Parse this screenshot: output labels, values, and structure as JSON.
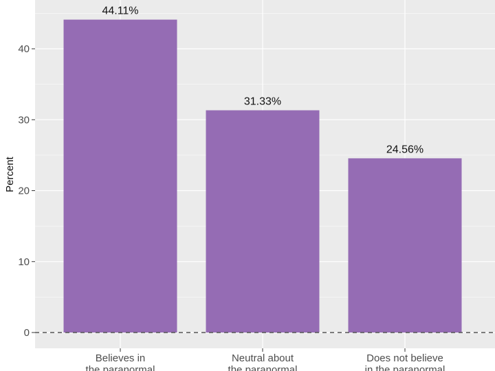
{
  "chart_data": {
    "type": "bar",
    "categories": [
      [
        "Believes in",
        "the paranormal"
      ],
      [
        "Neutral about",
        "the paranormal"
      ],
      [
        "Does not believe",
        "in the paranormal"
      ]
    ],
    "values": [
      44.11,
      31.33,
      24.56
    ],
    "data_labels": [
      "44.11%",
      "31.33%",
      "24.56%"
    ],
    "xlabel": "",
    "ylabel": "Percent",
    "yticks": [
      0,
      10,
      20,
      30,
      40
    ],
    "ylim": [
      -2.2,
      47
    ],
    "grid": true,
    "reference_line": {
      "y": 0,
      "style": "dashed"
    },
    "colors": {
      "bar": "#956CB4",
      "panel": "#EBEBEB",
      "grid": "#FFFFFF"
    }
  }
}
